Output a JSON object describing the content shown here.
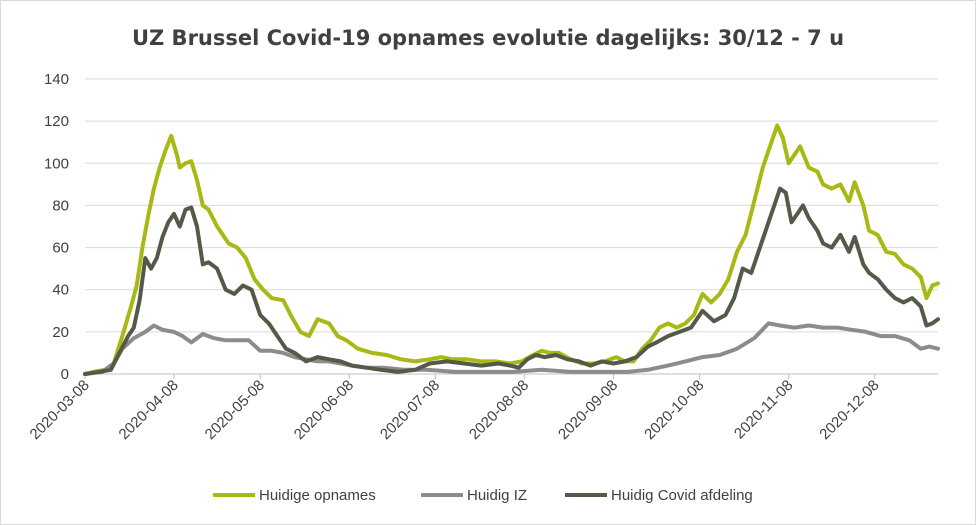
{
  "chart_data": {
    "type": "line",
    "title": "UZ Brussel Covid-19 opnames evolutie dagelijks: 30/12 - 7 u",
    "xlabel": "",
    "ylabel": "",
    "ylim": [
      0,
      140
    ],
    "yticks": [
      "0",
      "20",
      "40",
      "60",
      "80",
      "100",
      "120",
      "140"
    ],
    "xticks": [
      "2020-03-08",
      "2020-04-08",
      "2020-05-08",
      "2020-06-08",
      "2020-07-08",
      "2020-08-08",
      "2020-09-08",
      "2020-10-08",
      "2020-11-08",
      "2020-12-08"
    ],
    "grid": "horizontal",
    "legend_position": "bottom",
    "series": [
      {
        "name": "Huidige opnames",
        "color": "#a8b814",
        "points": [
          [
            "2020-03-08",
            0
          ],
          [
            "2020-03-11",
            1
          ],
          [
            "2020-03-15",
            2
          ],
          [
            "2020-03-18",
            5
          ],
          [
            "2020-03-21",
            18
          ],
          [
            "2020-03-24",
            32
          ],
          [
            "2020-03-26",
            42
          ],
          [
            "2020-03-28",
            60
          ],
          [
            "2020-03-30",
            75
          ],
          [
            "2020-04-01",
            88
          ],
          [
            "2020-04-03",
            98
          ],
          [
            "2020-04-05",
            106
          ],
          [
            "2020-04-07",
            113
          ],
          [
            "2020-04-09",
            104
          ],
          [
            "2020-04-10",
            98
          ],
          [
            "2020-04-12",
            100
          ],
          [
            "2020-04-14",
            101
          ],
          [
            "2020-04-16",
            92
          ],
          [
            "2020-04-18",
            80
          ],
          [
            "2020-04-20",
            78
          ],
          [
            "2020-04-23",
            70
          ],
          [
            "2020-04-27",
            62
          ],
          [
            "2020-04-30",
            60
          ],
          [
            "2020-05-03",
            55
          ],
          [
            "2020-05-06",
            45
          ],
          [
            "2020-05-09",
            40
          ],
          [
            "2020-05-12",
            36
          ],
          [
            "2020-05-16",
            35
          ],
          [
            "2020-05-19",
            27
          ],
          [
            "2020-05-22",
            20
          ],
          [
            "2020-05-25",
            18
          ],
          [
            "2020-05-28",
            26
          ],
          [
            "2020-06-01",
            24
          ],
          [
            "2020-06-04",
            18
          ],
          [
            "2020-06-07",
            16
          ],
          [
            "2020-06-11",
            12
          ],
          [
            "2020-06-16",
            10
          ],
          [
            "2020-06-21",
            9
          ],
          [
            "2020-06-26",
            7
          ],
          [
            "2020-07-01",
            6
          ],
          [
            "2020-07-06",
            7
          ],
          [
            "2020-07-10",
            8
          ],
          [
            "2020-07-14",
            7
          ],
          [
            "2020-07-19",
            7
          ],
          [
            "2020-07-24",
            6
          ],
          [
            "2020-07-29",
            6
          ],
          [
            "2020-08-03",
            5
          ],
          [
            "2020-08-07",
            6
          ],
          [
            "2020-08-11",
            9
          ],
          [
            "2020-08-14",
            11
          ],
          [
            "2020-08-17",
            10
          ],
          [
            "2020-08-20",
            10
          ],
          [
            "2020-08-24",
            7
          ],
          [
            "2020-08-28",
            5
          ],
          [
            "2020-09-01",
            5
          ],
          [
            "2020-09-05",
            6
          ],
          [
            "2020-09-09",
            8
          ],
          [
            "2020-09-12",
            6
          ],
          [
            "2020-09-15",
            6
          ],
          [
            "2020-09-18",
            12
          ],
          [
            "2020-09-21",
            16
          ],
          [
            "2020-09-24",
            22
          ],
          [
            "2020-09-27",
            24
          ],
          [
            "2020-09-30",
            22
          ],
          [
            "2020-10-03",
            24
          ],
          [
            "2020-10-06",
            28
          ],
          [
            "2020-10-09",
            38
          ],
          [
            "2020-10-12",
            34
          ],
          [
            "2020-10-15",
            38
          ],
          [
            "2020-10-18",
            45
          ],
          [
            "2020-10-21",
            58
          ],
          [
            "2020-10-24",
            66
          ],
          [
            "2020-10-27",
            82
          ],
          [
            "2020-10-30",
            98
          ],
          [
            "2020-11-02",
            110
          ],
          [
            "2020-11-04",
            118
          ],
          [
            "2020-11-06",
            112
          ],
          [
            "2020-11-08",
            100
          ],
          [
            "2020-11-10",
            104
          ],
          [
            "2020-11-12",
            108
          ],
          [
            "2020-11-15",
            98
          ],
          [
            "2020-11-18",
            96
          ],
          [
            "2020-11-20",
            90
          ],
          [
            "2020-11-23",
            88
          ],
          [
            "2020-11-26",
            90
          ],
          [
            "2020-11-29",
            82
          ],
          [
            "2020-12-01",
            91
          ],
          [
            "2020-12-04",
            80
          ],
          [
            "2020-12-06",
            68
          ],
          [
            "2020-12-09",
            66
          ],
          [
            "2020-12-12",
            58
          ],
          [
            "2020-12-15",
            57
          ],
          [
            "2020-12-18",
            52
          ],
          [
            "2020-12-21",
            50
          ],
          [
            "2020-12-24",
            46
          ],
          [
            "2020-12-26",
            36
          ],
          [
            "2020-12-28",
            42
          ],
          [
            "2020-12-30",
            43
          ]
        ]
      },
      {
        "name": "Huidig IZ",
        "color": "#8c8c8c",
        "points": [
          [
            "2020-03-08",
            0
          ],
          [
            "2020-03-14",
            1
          ],
          [
            "2020-03-18",
            5
          ],
          [
            "2020-03-21",
            12
          ],
          [
            "2020-03-25",
            17
          ],
          [
            "2020-03-29",
            20
          ],
          [
            "2020-04-01",
            23
          ],
          [
            "2020-04-04",
            21
          ],
          [
            "2020-04-08",
            20
          ],
          [
            "2020-04-11",
            18
          ],
          [
            "2020-04-14",
            15
          ],
          [
            "2020-04-18",
            19
          ],
          [
            "2020-04-22",
            17
          ],
          [
            "2020-04-26",
            16
          ],
          [
            "2020-04-30",
            16
          ],
          [
            "2020-05-04",
            16
          ],
          [
            "2020-05-08",
            11
          ],
          [
            "2020-05-12",
            11
          ],
          [
            "2020-05-16",
            10
          ],
          [
            "2020-05-20",
            8
          ],
          [
            "2020-05-24",
            7
          ],
          [
            "2020-05-28",
            6
          ],
          [
            "2020-06-01",
            6
          ],
          [
            "2020-06-05",
            5
          ],
          [
            "2020-06-09",
            4
          ],
          [
            "2020-06-14",
            3
          ],
          [
            "2020-06-20",
            3
          ],
          [
            "2020-06-27",
            2
          ],
          [
            "2020-07-05",
            2
          ],
          [
            "2020-07-15",
            1
          ],
          [
            "2020-07-25",
            1
          ],
          [
            "2020-08-04",
            1
          ],
          [
            "2020-08-14",
            2
          ],
          [
            "2020-08-24",
            1
          ],
          [
            "2020-09-03",
            1
          ],
          [
            "2020-09-13",
            1
          ],
          [
            "2020-09-20",
            2
          ],
          [
            "2020-09-27",
            4
          ],
          [
            "2020-10-03",
            6
          ],
          [
            "2020-10-09",
            8
          ],
          [
            "2020-10-15",
            9
          ],
          [
            "2020-10-21",
            12
          ],
          [
            "2020-10-27",
            17
          ],
          [
            "2020-11-01",
            24
          ],
          [
            "2020-11-05",
            23
          ],
          [
            "2020-11-10",
            22
          ],
          [
            "2020-11-15",
            23
          ],
          [
            "2020-11-20",
            22
          ],
          [
            "2020-11-25",
            22
          ],
          [
            "2020-11-30",
            21
          ],
          [
            "2020-12-05",
            20
          ],
          [
            "2020-12-10",
            18
          ],
          [
            "2020-12-15",
            18
          ],
          [
            "2020-12-20",
            16
          ],
          [
            "2020-12-24",
            12
          ],
          [
            "2020-12-27",
            13
          ],
          [
            "2020-12-30",
            12
          ]
        ]
      },
      {
        "name": "Huidig Covid afdeling",
        "color": "#545a48",
        "points": [
          [
            "2020-03-08",
            0
          ],
          [
            "2020-03-13",
            1
          ],
          [
            "2020-03-17",
            2
          ],
          [
            "2020-03-20",
            10
          ],
          [
            "2020-03-23",
            18
          ],
          [
            "2020-03-25",
            22
          ],
          [
            "2020-03-27",
            35
          ],
          [
            "2020-03-29",
            55
          ],
          [
            "2020-03-31",
            50
          ],
          [
            "2020-04-02",
            55
          ],
          [
            "2020-04-04",
            65
          ],
          [
            "2020-04-06",
            72
          ],
          [
            "2020-04-08",
            76
          ],
          [
            "2020-04-10",
            70
          ],
          [
            "2020-04-12",
            78
          ],
          [
            "2020-04-14",
            79
          ],
          [
            "2020-04-16",
            70
          ],
          [
            "2020-04-18",
            52
          ],
          [
            "2020-04-20",
            53
          ],
          [
            "2020-04-23",
            50
          ],
          [
            "2020-04-26",
            40
          ],
          [
            "2020-04-29",
            38
          ],
          [
            "2020-05-02",
            42
          ],
          [
            "2020-05-05",
            40
          ],
          [
            "2020-05-08",
            28
          ],
          [
            "2020-05-11",
            24
          ],
          [
            "2020-05-14",
            18
          ],
          [
            "2020-05-17",
            12
          ],
          [
            "2020-05-20",
            10
          ],
          [
            "2020-05-24",
            6
          ],
          [
            "2020-05-28",
            8
          ],
          [
            "2020-06-01",
            7
          ],
          [
            "2020-06-05",
            6
          ],
          [
            "2020-06-09",
            4
          ],
          [
            "2020-06-14",
            3
          ],
          [
            "2020-06-19",
            2
          ],
          [
            "2020-06-25",
            1
          ],
          [
            "2020-07-01",
            2
          ],
          [
            "2020-07-06",
            5
          ],
          [
            "2020-07-12",
            6
          ],
          [
            "2020-07-18",
            5
          ],
          [
            "2020-07-24",
            4
          ],
          [
            "2020-07-30",
            5
          ],
          [
            "2020-08-03",
            4
          ],
          [
            "2020-08-06",
            3
          ],
          [
            "2020-08-09",
            7
          ],
          [
            "2020-08-12",
            9
          ],
          [
            "2020-08-15",
            8
          ],
          [
            "2020-08-19",
            9
          ],
          [
            "2020-08-23",
            7
          ],
          [
            "2020-08-27",
            6
          ],
          [
            "2020-08-31",
            4
          ],
          [
            "2020-09-04",
            6
          ],
          [
            "2020-09-08",
            5
          ],
          [
            "2020-09-12",
            6
          ],
          [
            "2020-09-16",
            8
          ],
          [
            "2020-09-20",
            13
          ],
          [
            "2020-09-23",
            15
          ],
          [
            "2020-09-27",
            18
          ],
          [
            "2020-10-01",
            20
          ],
          [
            "2020-10-05",
            22
          ],
          [
            "2020-10-09",
            30
          ],
          [
            "2020-10-13",
            25
          ],
          [
            "2020-10-17",
            28
          ],
          [
            "2020-10-20",
            36
          ],
          [
            "2020-10-23",
            50
          ],
          [
            "2020-10-26",
            48
          ],
          [
            "2020-10-29",
            60
          ],
          [
            "2020-11-01",
            72
          ],
          [
            "2020-11-03",
            80
          ],
          [
            "2020-11-05",
            88
          ],
          [
            "2020-11-07",
            86
          ],
          [
            "2020-11-09",
            72
          ],
          [
            "2020-11-11",
            76
          ],
          [
            "2020-11-13",
            80
          ],
          [
            "2020-11-15",
            74
          ],
          [
            "2020-11-18",
            68
          ],
          [
            "2020-11-20",
            62
          ],
          [
            "2020-11-23",
            60
          ],
          [
            "2020-11-26",
            66
          ],
          [
            "2020-11-29",
            58
          ],
          [
            "2020-12-01",
            65
          ],
          [
            "2020-12-04",
            52
          ],
          [
            "2020-12-06",
            48
          ],
          [
            "2020-12-09",
            45
          ],
          [
            "2020-12-12",
            40
          ],
          [
            "2020-12-15",
            36
          ],
          [
            "2020-12-18",
            34
          ],
          [
            "2020-12-21",
            36
          ],
          [
            "2020-12-24",
            32
          ],
          [
            "2020-12-26",
            23
          ],
          [
            "2020-12-28",
            24
          ],
          [
            "2020-12-30",
            26
          ]
        ]
      }
    ]
  }
}
